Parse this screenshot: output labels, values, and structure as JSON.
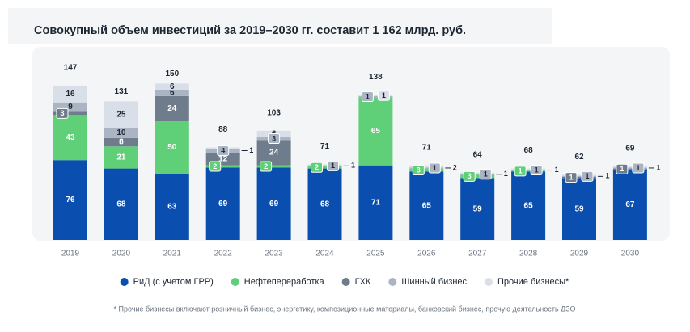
{
  "chart_data": {
    "type": "stacked_bar",
    "title": "Совокупный объем инвестиций за 2019–2030 гг. составит 1 162 млрд. руб.",
    "categories": [
      "2019",
      "2020",
      "2021",
      "2022",
      "2023",
      "2024",
      "2025",
      "2026",
      "2027",
      "2028",
      "2029",
      "2030"
    ],
    "series": [
      {
        "name": "РиД (с учетом ГРР)",
        "color": "#0a4fb0",
        "values": [
          76,
          68,
          63,
          69,
          69,
          68,
          71,
          65,
          59,
          65,
          59,
          67
        ]
      },
      {
        "name": "Нефтепереработка",
        "color": "#5fcf78",
        "values": [
          43,
          21,
          50,
          2,
          2,
          2,
          65,
          3,
          3,
          1,
          null,
          null
        ]
      },
      {
        "name": "ГХК",
        "color": "#6f7c8b",
        "values": [
          3,
          8,
          24,
          12,
          24,
          null,
          null,
          null,
          null,
          null,
          1,
          1
        ]
      },
      {
        "name": "Шинный бизнес",
        "color": "#aab4c3",
        "values": [
          9,
          10,
          6,
          4,
          3,
          1,
          1,
          1,
          1,
          1,
          1,
          1
        ]
      },
      {
        "name": "Прочие бизнесы*",
        "color": "#d9dfe9",
        "values": [
          16,
          25,
          6,
          1,
          6,
          1,
          1,
          2,
          1,
          1,
          1,
          1
        ]
      }
    ],
    "totals": [
      147,
      131,
      150,
      88,
      103,
      71,
      138,
      71,
      64,
      68,
      62,
      69
    ],
    "footnote": "* Прочие бизнесы включают розничный бизнес, энергетику, композиционные материалы, банковский бизнес, прочую деятельность ДЗО"
  }
}
